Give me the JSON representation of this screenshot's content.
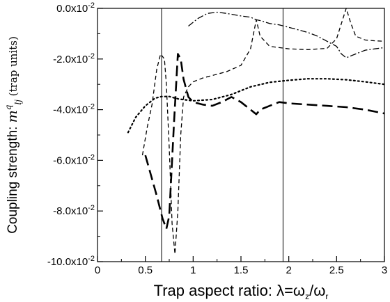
{
  "chart_data": {
    "type": "line",
    "xlabel": "Trap aspect ratio: λ=ω_z/ω_r",
    "ylabel": "Coupling strength: m^q_lj (trap units)",
    "xlim": [
      0,
      3
    ],
    "ylim": [
      -0.1,
      0.0
    ],
    "x_ticks": [
      0,
      0.5,
      1,
      1.5,
      2,
      2.5,
      3
    ],
    "x_tick_labels": [
      "0",
      "0.5",
      "1",
      "1.5",
      "2",
      "2.5",
      "3"
    ],
    "y_ticks": [
      0.0,
      -0.02,
      -0.04,
      -0.06,
      -0.08,
      -0.1
    ],
    "y_tick_labels": [
      "0.0x10-2",
      "-2.0x10-2",
      "-4.0x10-2",
      "-6.0x10-2",
      "-8.0x10-2",
      "-10.0x10-2"
    ],
    "grid": false,
    "legend": "none",
    "vertical_lines": [
      0.67,
      1.94
    ],
    "series": [
      {
        "style": "long-dash",
        "x": [
          0.5,
          0.56,
          0.62,
          0.68,
          0.72,
          0.75,
          0.8,
          0.84,
          0.87,
          0.9,
          0.95,
          1.0,
          1.1,
          1.2,
          1.3,
          1.4,
          1.5,
          1.6,
          1.66,
          1.7,
          1.8,
          1.9,
          2.0,
          2.2,
          2.4,
          2.6,
          2.8,
          3.0
        ],
        "y": [
          -0.058,
          -0.066,
          -0.074,
          -0.083,
          -0.087,
          -0.082,
          -0.045,
          -0.018,
          -0.02,
          -0.028,
          -0.035,
          -0.037,
          -0.038,
          -0.0385,
          -0.037,
          -0.035,
          -0.037,
          -0.04,
          -0.0418,
          -0.04,
          -0.0385,
          -0.037,
          -0.0375,
          -0.038,
          -0.0385,
          -0.039,
          -0.04,
          -0.0415
        ]
      },
      {
        "style": "short-dash",
        "x": [
          0.47,
          0.52,
          0.57,
          0.62,
          0.66,
          0.7,
          0.72,
          0.75,
          0.78,
          0.81,
          0.84,
          0.87,
          0.9,
          0.95,
          1.0,
          1.1,
          1.2,
          1.35,
          1.5,
          1.6,
          1.66,
          1.7,
          1.8,
          2.0,
          2.2,
          2.4,
          2.5,
          2.55,
          2.6,
          2.65,
          2.7,
          2.8,
          2.9,
          3.0
        ],
        "y": [
          -0.058,
          -0.047,
          -0.038,
          -0.024,
          -0.018,
          -0.02,
          -0.03,
          -0.055,
          -0.085,
          -0.097,
          -0.08,
          -0.05,
          -0.035,
          -0.031,
          -0.029,
          -0.0275,
          -0.0265,
          -0.025,
          -0.0225,
          -0.016,
          -0.0045,
          -0.011,
          -0.015,
          -0.016,
          -0.0163,
          -0.0158,
          -0.012,
          -0.006,
          0.0,
          -0.006,
          -0.011,
          -0.0125,
          -0.0128,
          -0.013
        ]
      },
      {
        "style": "dotted",
        "x": [
          0.32,
          0.4,
          0.5,
          0.6,
          0.67,
          0.75,
          0.85,
          1.0,
          1.2,
          1.4,
          1.6,
          1.8,
          2.0,
          2.2,
          2.4,
          2.6,
          2.8,
          3.0
        ],
        "y": [
          -0.049,
          -0.043,
          -0.0385,
          -0.0355,
          -0.0348,
          -0.0348,
          -0.0358,
          -0.0365,
          -0.036,
          -0.034,
          -0.031,
          -0.0292,
          -0.0284,
          -0.0278,
          -0.0278,
          -0.0282,
          -0.029,
          -0.03
        ]
      },
      {
        "style": "dash-dot",
        "x": [
          0.95,
          1.05,
          1.15,
          1.25,
          1.35,
          1.5,
          1.6,
          1.66,
          1.72,
          1.8,
          1.9,
          2.0,
          2.1,
          2.2,
          2.3,
          2.4,
          2.5,
          2.55,
          2.6,
          2.7,
          2.8,
          2.9,
          3.0
        ],
        "y": [
          -0.007,
          -0.004,
          -0.002,
          -0.0015,
          -0.002,
          -0.003,
          -0.0035,
          -0.0045,
          -0.005,
          -0.006,
          -0.0065,
          -0.0075,
          -0.0085,
          -0.0095,
          -0.011,
          -0.013,
          -0.015,
          -0.018,
          -0.0195,
          -0.018,
          -0.0165,
          -0.016,
          -0.0155
        ]
      }
    ]
  }
}
